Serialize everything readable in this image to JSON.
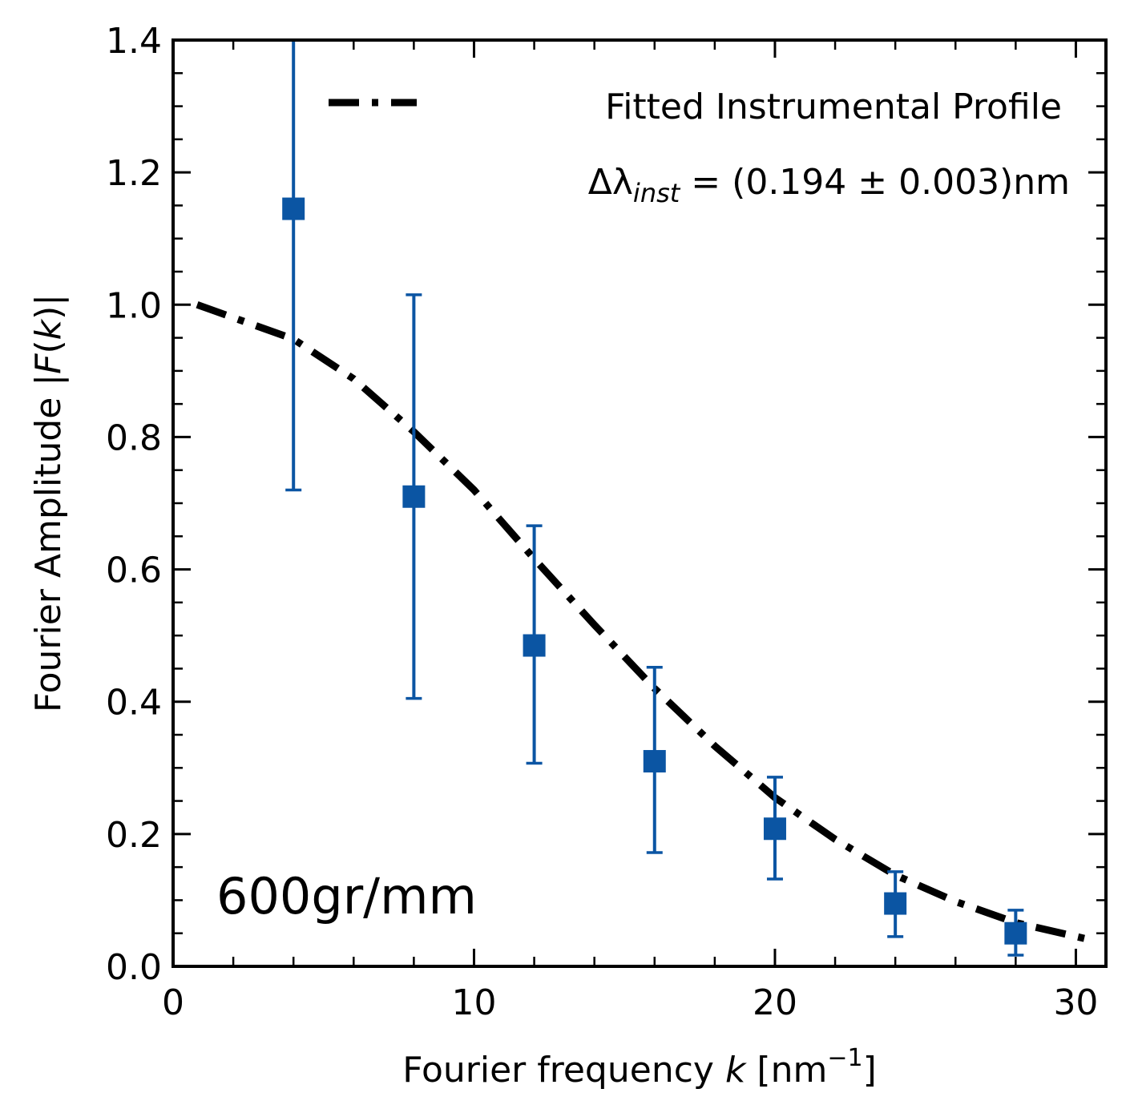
{
  "chart_data": {
    "type": "scatter",
    "xlabel": "Fourier frequency",
    "xlabel_var": "k",
    "xlabel_unit_open": "[nm",
    "xlabel_unit_exp": "−1",
    "xlabel_unit_close": "]",
    "ylabel_text": "Fourier Amplitude |",
    "ylabel_var": "F",
    "ylabel_paren": "(",
    "ylabel_var2": "k",
    "ylabel_close": ")|",
    "xlim": [
      0,
      31
    ],
    "ylim": [
      0,
      1.4
    ],
    "x_ticks": [
      0,
      10,
      20,
      30
    ],
    "x_tick_labels": [
      "0",
      "10",
      "20",
      "30"
    ],
    "y_ticks": [
      0.0,
      0.2,
      0.4,
      0.6,
      0.8,
      1.0,
      1.2,
      1.4
    ],
    "y_tick_labels": [
      "0.0",
      "0.2",
      "0.4",
      "0.6",
      "0.8",
      "1.0",
      "1.2",
      "1.4"
    ],
    "grid": false,
    "legend_placement": "top-right",
    "annotation": "600gr/mm",
    "series": [
      {
        "kind": "errorbar",
        "marker": "square",
        "color": "#0b55a3",
        "x": [
          4,
          8,
          12,
          16,
          20,
          24,
          28
        ],
        "y": [
          1.145,
          0.71,
          0.485,
          0.31,
          0.208,
          0.095,
          0.05
        ],
        "yerr_low": [
          0.72,
          0.405,
          0.307,
          0.172,
          0.132,
          0.045,
          0.017
        ],
        "yerr_high": [
          1.4,
          1.015,
          0.666,
          0.452,
          0.286,
          0.143,
          0.085
        ]
      },
      {
        "name": "Fitted Instrumental Profile",
        "kind": "line",
        "style": "dash-dot",
        "color": "#000000",
        "x": [
          0.8,
          4,
          6,
          8,
          10,
          12,
          14,
          16,
          18,
          20,
          22,
          24,
          26,
          28,
          30.5
        ],
        "y": [
          1.0,
          0.948,
          0.888,
          0.808,
          0.72,
          0.616,
          0.516,
          0.42,
          0.333,
          0.255,
          0.192,
          0.138,
          0.098,
          0.066,
          0.04
        ]
      }
    ],
    "legend_formula": {
      "prefix": "Δλ",
      "subscript": "inst",
      "body": " = (0.194 ± 0.003)nm"
    }
  }
}
